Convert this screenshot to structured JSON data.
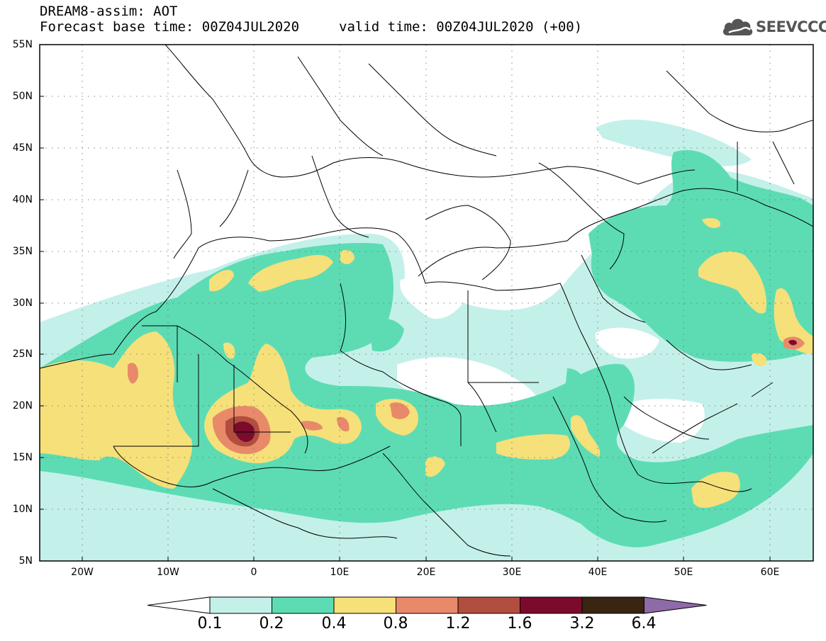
{
  "header": {
    "title": "DREAM8-assim: AOT",
    "forecast_base": "Forecast base time: 00Z04JUL2020",
    "valid": "valid time: 00Z04JUL2020 (+00)"
  },
  "logo": {
    "text": "SEEVCCC",
    "icon": "cloud-logo-icon"
  },
  "axes": {
    "lat_labels": [
      "55N",
      "50N",
      "45N",
      "40N",
      "35N",
      "30N",
      "25N",
      "20N",
      "15N",
      "10N",
      "5N"
    ],
    "lon_labels": [
      "20W",
      "10W",
      "0",
      "10E",
      "20E",
      "30E",
      "40E",
      "50E",
      "60E"
    ]
  },
  "colorbar": {
    "colors": [
      "#ffffff",
      "#c4f0ea",
      "#5ddcb4",
      "#f6e07a",
      "#e88a6a",
      "#b24e40",
      "#7c0a2c",
      "#3a2412",
      "#8e6aa8"
    ],
    "labels": [
      "0.1",
      "0.2",
      "0.4",
      "0.8",
      "1.2",
      "1.6",
      "3.2",
      "6.4"
    ]
  },
  "colors": {
    "c1": "#c4f0ea",
    "c2": "#5ddcb4",
    "c3": "#f6e07a",
    "c4": "#e88a6a",
    "c5": "#b24e40",
    "c6": "#7c0a2c",
    "border": "#000000"
  }
}
